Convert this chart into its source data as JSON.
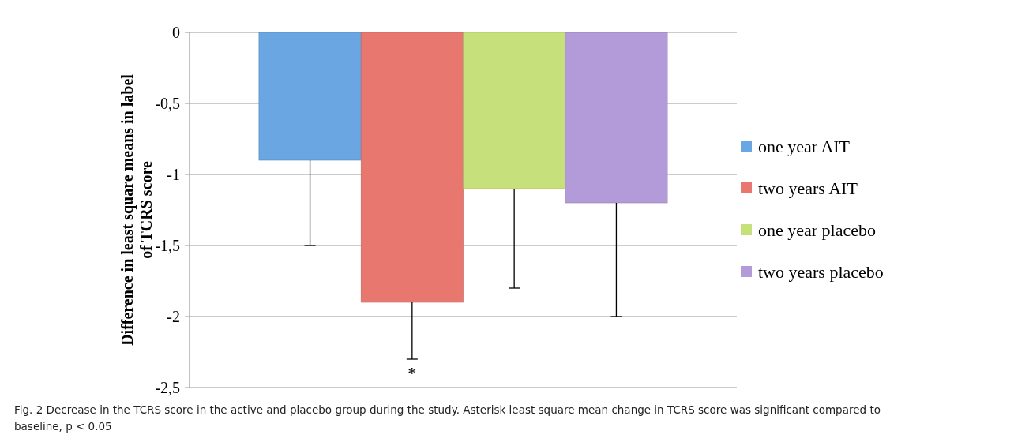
{
  "chart_data": {
    "type": "bar",
    "ylabel": "Difference in least square means in label of TCRS score",
    "categories": [
      null
    ],
    "series": [
      {
        "name": "one year AIT",
        "color": "#6aa6e2",
        "values": [
          -0.9
        ],
        "errors": [
          [
            -1.5,
            -0.9
          ]
        ]
      },
      {
        "name": "two years AIT",
        "color": "#e8786f",
        "values": [
          -1.9
        ],
        "errors": [
          [
            -2.3,
            -1.9
          ]
        ]
      },
      {
        "name": "one year placebo",
        "color": "#c6e07c",
        "values": [
          -1.1
        ],
        "errors": [
          [
            -1.8,
            -1.1
          ]
        ]
      },
      {
        "name": "two years placebo",
        "color": "#b39ad8",
        "values": [
          -1.2
        ],
        "errors": [
          [
            -2.0,
            -1.2
          ]
        ]
      }
    ],
    "ylim": [
      -2.5,
      0
    ],
    "yticks": [
      0,
      {
        "value": -0.5,
        "label": "-0,5"
      },
      -1,
      {
        "value": -1.5,
        "label": "-1,5"
      },
      -2,
      {
        "value": -2.5,
        "label": "-2,5"
      }
    ],
    "grid": "y",
    "legend": "right",
    "annotations": [
      "*",
      "Fig. 2  Decrease in the TCRS score in the active and placebo group during the study. Asterisk least square mean change in TCRS score was significant compared to baseline, p < 0.05"
    ]
  }
}
